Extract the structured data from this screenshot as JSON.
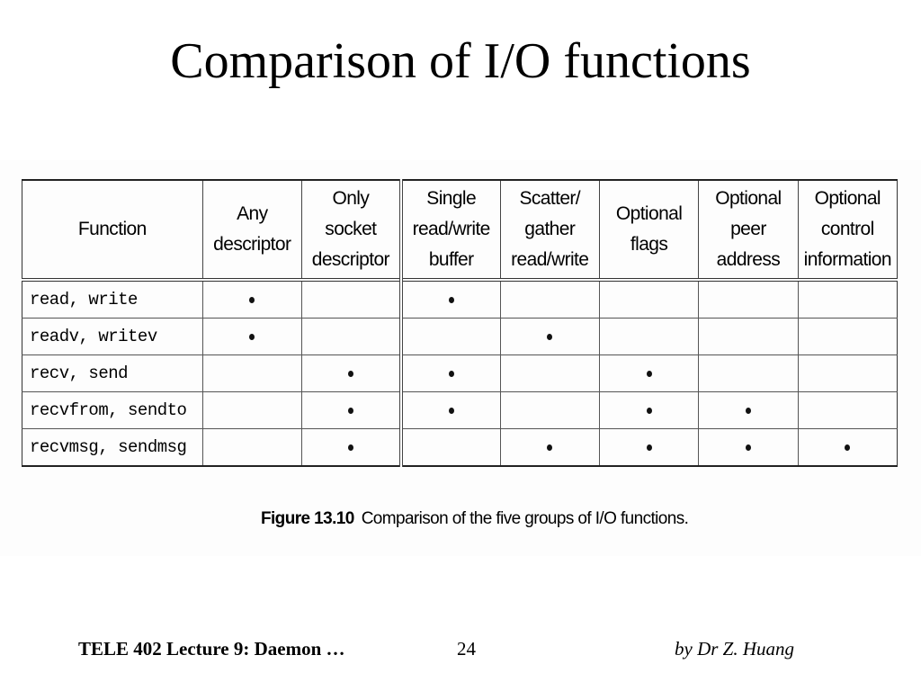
{
  "slide": {
    "title": "Comparison of I/O functions"
  },
  "table": {
    "header_function": "Function",
    "columns": [
      {
        "line1": "Any",
        "line2": "descriptor",
        "line3": ""
      },
      {
        "line1": "Only",
        "line2": "socket",
        "line3": "descriptor"
      },
      {
        "line1": "Single",
        "line2": "read/write",
        "line3": "buffer"
      },
      {
        "line1": "Scatter/",
        "line2": "gather",
        "line3": "read/write"
      },
      {
        "line1": "Optional",
        "line2": "flags",
        "line3": ""
      },
      {
        "line1": "Optional",
        "line2": "peer",
        "line3": "address"
      },
      {
        "line1": "Optional",
        "line2": "control",
        "line3": "information"
      }
    ],
    "rows": [
      {
        "function": "read, write",
        "marks": [
          true,
          false,
          true,
          false,
          false,
          false,
          false
        ]
      },
      {
        "function": "readv, writev",
        "marks": [
          true,
          false,
          false,
          true,
          false,
          false,
          false
        ]
      },
      {
        "function": "recv, send",
        "marks": [
          false,
          true,
          true,
          false,
          true,
          false,
          false
        ]
      },
      {
        "function": "recvfrom, sendto",
        "marks": [
          false,
          true,
          true,
          false,
          true,
          true,
          false
        ]
      },
      {
        "function": "recvmsg, sendmsg",
        "marks": [
          false,
          true,
          false,
          true,
          true,
          true,
          true
        ]
      }
    ]
  },
  "caption": {
    "figure_label": "Figure 13.10",
    "text": "Comparison of the five groups of I/O functions."
  },
  "footer": {
    "left": "TELE 402 Lecture 9: Daemon …",
    "page_number": "24",
    "right": "by Dr Z. Huang"
  }
}
